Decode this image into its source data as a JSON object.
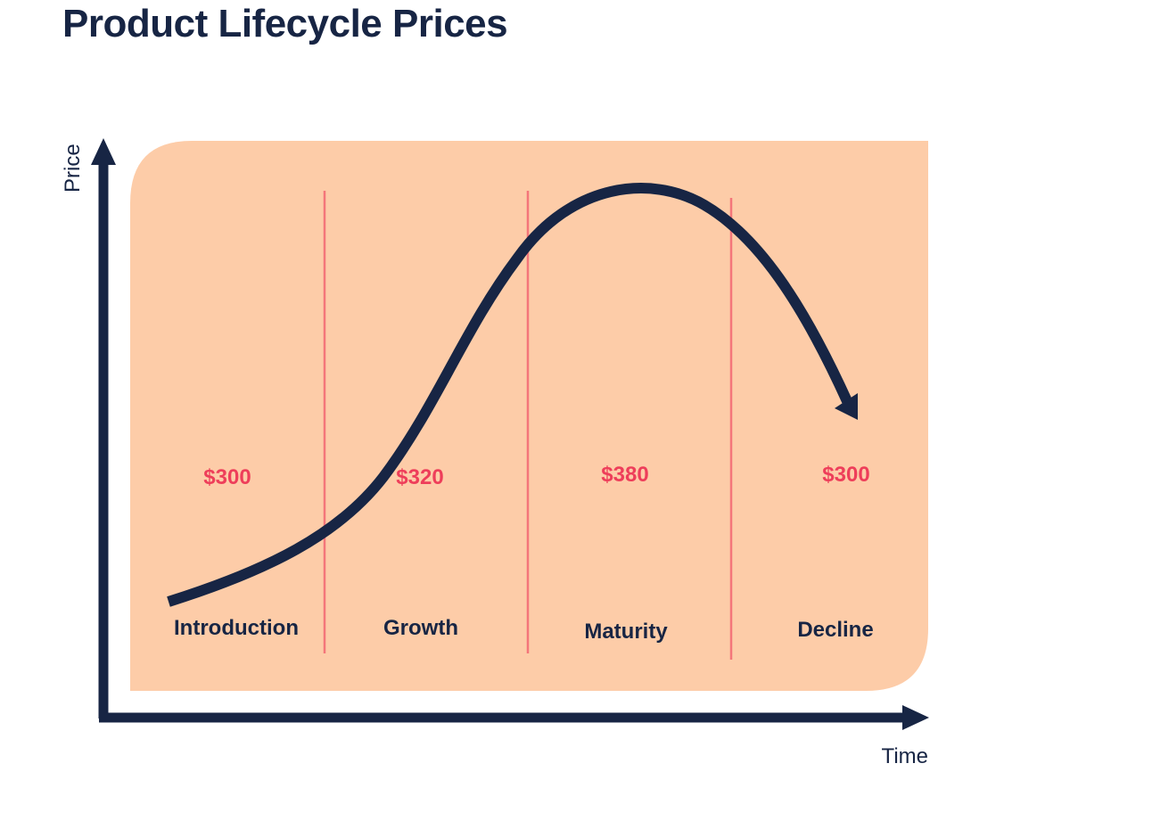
{
  "title": "Product Lifecycle Prices",
  "axes": {
    "y_label": "Price",
    "x_label": "Time"
  },
  "stages": [
    {
      "name": "Introduction",
      "price": "$300"
    },
    {
      "name": "Growth",
      "price": "$320"
    },
    {
      "name": "Maturity",
      "price": "$380"
    },
    {
      "name": "Decline",
      "price": "$300"
    }
  ],
  "colors": {
    "navy": "#172544",
    "panel": "#fdcca8",
    "divider": "#f4767a",
    "price": "#ee3e5a"
  }
}
